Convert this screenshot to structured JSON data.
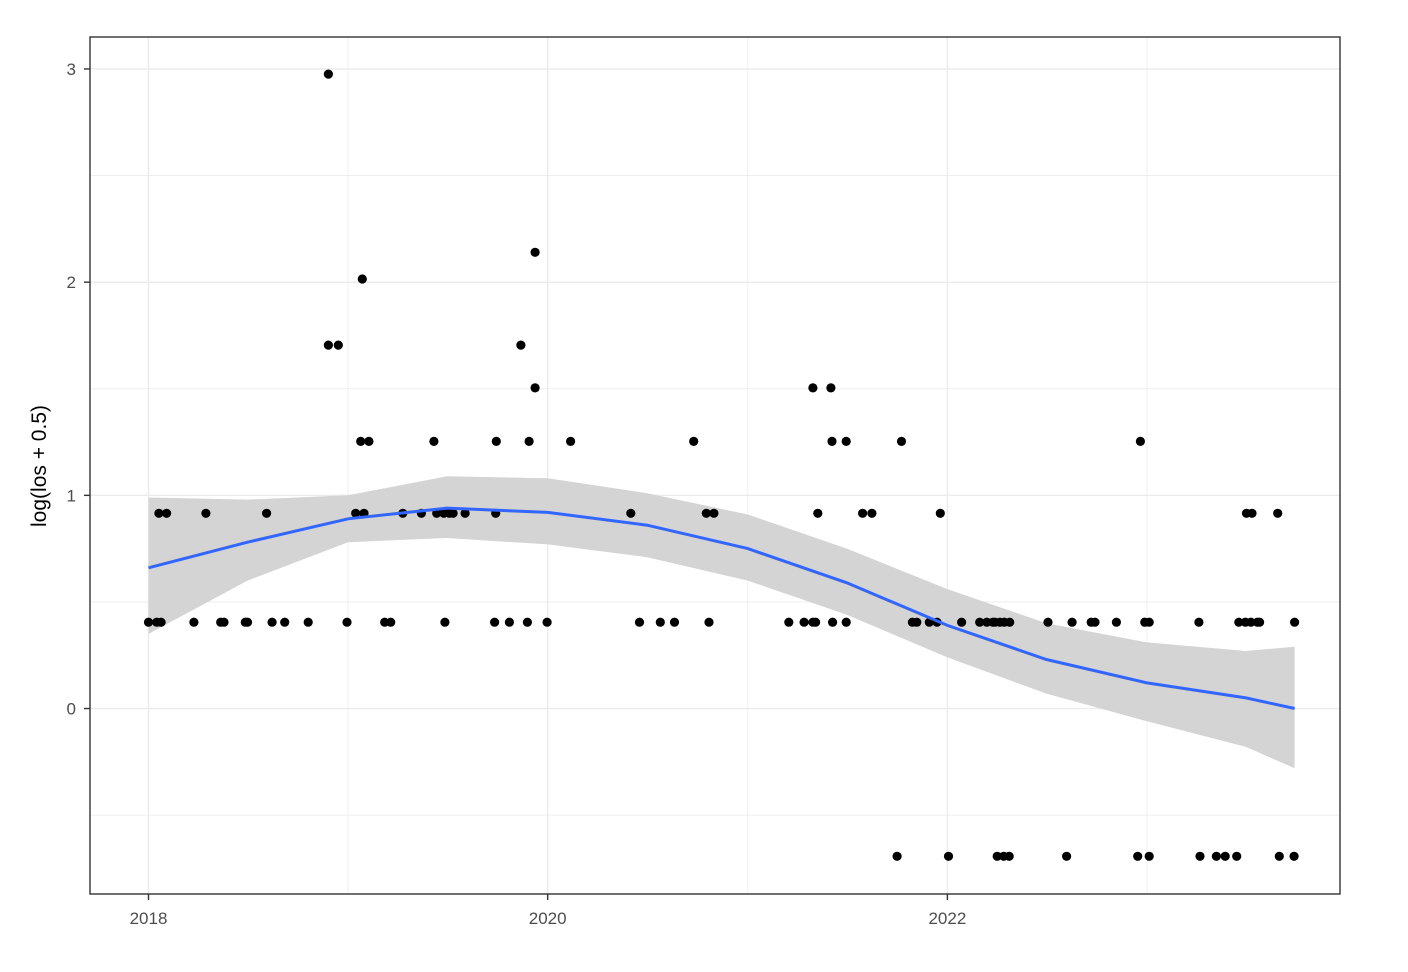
{
  "chart_data": {
    "type": "scatter",
    "title": "",
    "xlabel": "",
    "ylabel": "log(los + 0.5)",
    "x_scale": "date",
    "xlim": [
      "2017-09-16",
      "2023-12-20"
    ],
    "ylim": [
      -0.87,
      3.15
    ],
    "grid": true,
    "legend": "none",
    "x_ticks": [
      {
        "value": "2018-01-01",
        "label": "2018"
      },
      {
        "value": "2020-01-01",
        "label": "2020"
      },
      {
        "value": "2022-01-01",
        "label": "2022"
      }
    ],
    "y_ticks": [
      {
        "value": 0,
        "label": "0"
      },
      {
        "value": 1,
        "label": "1"
      },
      {
        "value": 2,
        "label": "2"
      },
      {
        "value": 3,
        "label": "3"
      }
    ],
    "x_minor_breaks": [
      "2019-01-01",
      "2021-01-01",
      "2023-01-01"
    ],
    "y_minor_breaks": [
      -0.5,
      0.5,
      1.5,
      2.5
    ],
    "colors": {
      "points": "#000000",
      "smooth_line": "#3366ff",
      "confidence_band": "#d4d4d4",
      "grid": "#ebebeb",
      "panel_border": "#333333"
    },
    "points": [
      {
        "x": "2018-01-01",
        "y": 0.405
      },
      {
        "x": "2018-01-16",
        "y": 0.405
      },
      {
        "x": "2018-01-24",
        "y": 0.405
      },
      {
        "x": "2018-01-20",
        "y": 0.916
      },
      {
        "x": "2018-02-03",
        "y": 0.916
      },
      {
        "x": "2018-03-25",
        "y": 0.405
      },
      {
        "x": "2018-04-16",
        "y": 0.916
      },
      {
        "x": "2018-05-13",
        "y": 0.405
      },
      {
        "x": "2018-05-19",
        "y": 0.405
      },
      {
        "x": "2018-06-27",
        "y": 0.405
      },
      {
        "x": "2018-07-01",
        "y": 0.405
      },
      {
        "x": "2018-08-05",
        "y": 0.916
      },
      {
        "x": "2018-08-15",
        "y": 0.405
      },
      {
        "x": "2018-09-07",
        "y": 0.405
      },
      {
        "x": "2018-10-20",
        "y": 0.405
      },
      {
        "x": "2018-11-26",
        "y": 2.976
      },
      {
        "x": "2018-11-26",
        "y": 1.705
      },
      {
        "x": "2018-12-14",
        "y": 1.705
      },
      {
        "x": "2018-12-30",
        "y": 0.405
      },
      {
        "x": "2019-01-15",
        "y": 0.916
      },
      {
        "x": "2019-01-24",
        "y": 1.253
      },
      {
        "x": "2019-01-27",
        "y": 2.015
      },
      {
        "x": "2019-01-30",
        "y": 0.916
      },
      {
        "x": "2019-02-08",
        "y": 1.253
      },
      {
        "x": "2019-03-09",
        "y": 0.405
      },
      {
        "x": "2019-03-20",
        "y": 0.405
      },
      {
        "x": "2019-04-11",
        "y": 0.916
      },
      {
        "x": "2019-05-15",
        "y": 0.916
      },
      {
        "x": "2019-06-07",
        "y": 1.253
      },
      {
        "x": "2019-06-12",
        "y": 0.916
      },
      {
        "x": "2019-06-25",
        "y": 0.916
      },
      {
        "x": "2019-06-27",
        "y": 0.405
      },
      {
        "x": "2019-07-05",
        "y": 0.916
      },
      {
        "x": "2019-07-12",
        "y": 0.916
      },
      {
        "x": "2019-08-03",
        "y": 0.916
      },
      {
        "x": "2019-09-26",
        "y": 0.405
      },
      {
        "x": "2019-09-29",
        "y": 1.253
      },
      {
        "x": "2019-09-28",
        "y": 0.916
      },
      {
        "x": "2019-10-23",
        "y": 0.405
      },
      {
        "x": "2019-11-13",
        "y": 1.705
      },
      {
        "x": "2019-11-25",
        "y": 0.405
      },
      {
        "x": "2019-11-28",
        "y": 1.253
      },
      {
        "x": "2019-12-09",
        "y": 2.14
      },
      {
        "x": "2019-12-09",
        "y": 1.504
      },
      {
        "x": "2019-12-31",
        "y": 0.405
      },
      {
        "x": "2020-02-12",
        "y": 1.253
      },
      {
        "x": "2020-06-01",
        "y": 0.916
      },
      {
        "x": "2020-06-17",
        "y": 0.405
      },
      {
        "x": "2020-07-25",
        "y": 0.405
      },
      {
        "x": "2020-08-20",
        "y": 0.405
      },
      {
        "x": "2020-09-24",
        "y": 1.253
      },
      {
        "x": "2020-10-17",
        "y": 0.916
      },
      {
        "x": "2020-10-22",
        "y": 0.405
      },
      {
        "x": "2020-10-31",
        "y": 0.916
      },
      {
        "x": "2021-03-17",
        "y": 0.405
      },
      {
        "x": "2021-04-14",
        "y": 0.405
      },
      {
        "x": "2021-04-30",
        "y": 1.504
      },
      {
        "x": "2021-04-30",
        "y": 0.405
      },
      {
        "x": "2021-05-05",
        "y": 0.405
      },
      {
        "x": "2021-05-09",
        "y": 0.916
      },
      {
        "x": "2021-06-02",
        "y": 1.504
      },
      {
        "x": "2021-06-04",
        "y": 1.253
      },
      {
        "x": "2021-06-05",
        "y": 0.405
      },
      {
        "x": "2021-06-30",
        "y": 1.253
      },
      {
        "x": "2021-06-30",
        "y": 0.405
      },
      {
        "x": "2021-07-30",
        "y": 0.916
      },
      {
        "x": "2021-08-16",
        "y": 0.916
      },
      {
        "x": "2021-10-01",
        "y": -0.693
      },
      {
        "x": "2021-10-09",
        "y": 1.253
      },
      {
        "x": "2021-10-29",
        "y": 0.405
      },
      {
        "x": "2021-11-06",
        "y": 0.405
      },
      {
        "x": "2021-11-29",
        "y": 0.405
      },
      {
        "x": "2021-12-13",
        "y": 0.405
      },
      {
        "x": "2021-12-19",
        "y": 0.916
      },
      {
        "x": "2022-01-03",
        "y": -0.693
      },
      {
        "x": "2022-01-27",
        "y": 0.405
      },
      {
        "x": "2022-03-01",
        "y": 0.405
      },
      {
        "x": "2022-03-14",
        "y": 0.405
      },
      {
        "x": "2022-03-25",
        "y": 0.405
      },
      {
        "x": "2022-03-29",
        "y": 0.405
      },
      {
        "x": "2022-04-02",
        "y": -0.693
      },
      {
        "x": "2022-04-07",
        "y": 0.405
      },
      {
        "x": "2022-04-14",
        "y": -0.693
      },
      {
        "x": "2022-04-15",
        "y": 0.405
      },
      {
        "x": "2022-04-24",
        "y": -0.693
      },
      {
        "x": "2022-04-25",
        "y": 0.405
      },
      {
        "x": "2022-07-04",
        "y": 0.405
      },
      {
        "x": "2022-08-07",
        "y": -0.693
      },
      {
        "x": "2022-08-17",
        "y": 0.405
      },
      {
        "x": "2022-09-21",
        "y": 0.405
      },
      {
        "x": "2022-09-28",
        "y": 0.405
      },
      {
        "x": "2022-11-06",
        "y": 0.405
      },
      {
        "x": "2022-12-15",
        "y": -0.693
      },
      {
        "x": "2022-12-20",
        "y": 1.253
      },
      {
        "x": "2022-12-28",
        "y": 0.405
      },
      {
        "x": "2023-01-05",
        "y": 0.405
      },
      {
        "x": "2023-01-05",
        "y": -0.693
      },
      {
        "x": "2023-04-06",
        "y": 0.405
      },
      {
        "x": "2023-04-08",
        "y": -0.693
      },
      {
        "x": "2023-05-08",
        "y": -0.693
      },
      {
        "x": "2023-05-24",
        "y": -0.693
      },
      {
        "x": "2023-06-14",
        "y": -0.693
      },
      {
        "x": "2023-06-18",
        "y": 0.405
      },
      {
        "x": "2023-06-30",
        "y": 0.405
      },
      {
        "x": "2023-07-02",
        "y": 0.916
      },
      {
        "x": "2023-07-10",
        "y": 0.405
      },
      {
        "x": "2023-07-12",
        "y": 0.916
      },
      {
        "x": "2023-07-22",
        "y": 0.405
      },
      {
        "x": "2023-07-26",
        "y": 0.405
      },
      {
        "x": "2023-08-28",
        "y": 0.916
      },
      {
        "x": "2023-08-31",
        "y": -0.693
      },
      {
        "x": "2023-09-27",
        "y": -0.693
      },
      {
        "x": "2023-09-28",
        "y": 0.405
      }
    ],
    "smooth": {
      "method": "loess",
      "x": [
        "2018-01-01",
        "2018-07-01",
        "2019-01-01",
        "2019-07-01",
        "2020-01-01",
        "2020-07-01",
        "2021-01-01",
        "2021-07-01",
        "2022-01-01",
        "2022-07-01",
        "2023-01-01",
        "2023-07-01",
        "2023-09-28"
      ],
      "y": [
        0.66,
        0.78,
        0.89,
        0.94,
        0.92,
        0.86,
        0.75,
        0.59,
        0.39,
        0.23,
        0.12,
        0.05,
        0.0
      ],
      "lower": [
        0.35,
        0.6,
        0.78,
        0.8,
        0.77,
        0.71,
        0.6,
        0.44,
        0.24,
        0.07,
        -0.06,
        -0.18,
        -0.28
      ],
      "upper": [
        0.99,
        0.98,
        1.0,
        1.09,
        1.08,
        1.01,
        0.91,
        0.75,
        0.56,
        0.4,
        0.31,
        0.27,
        0.29
      ]
    }
  }
}
